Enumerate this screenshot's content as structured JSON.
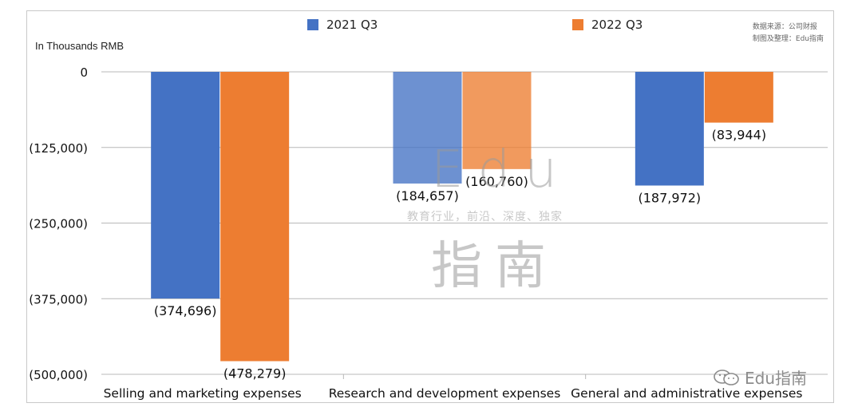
{
  "legend": [
    {
      "label": "2021 Q3",
      "color": "#4472c4"
    },
    {
      "label": "2022 Q3",
      "color": "#ed7d31"
    }
  ],
  "units_label": "In Thousands RMB",
  "source_lines": [
    "数据来源：公司财报",
    "制图及整理：Edu指南"
  ],
  "watermark": {
    "edu": "Edu",
    "tagline": "教育行业，前沿、深度、独家",
    "cn": "指南"
  },
  "brand_text": "Edu指南",
  "chart_data": {
    "type": "bar",
    "categories": [
      "Selling and marketing expenses",
      "Research and development expenses",
      "General and administrative expenses"
    ],
    "series": [
      {
        "name": "2021 Q3",
        "values": [
          -374696,
          -184657,
          -187972
        ],
        "labels": [
          "(374,696)",
          "(184,657)",
          "(187,972)"
        ],
        "color": "#4472c4"
      },
      {
        "name": "2022 Q3",
        "values": [
          -478279,
          -160760,
          -83944
        ],
        "labels": [
          "(478,279)",
          "(160,760)",
          "(83,944)"
        ],
        "color": "#ed7d31"
      }
    ],
    "ylim": [
      -500000,
      0
    ],
    "yticks": [
      0,
      -125000,
      -250000,
      -375000,
      -500000
    ],
    "ytick_labels": [
      "0",
      "(125,000)",
      "(250,000)",
      "(375,000)",
      "(500,000)"
    ],
    "grid": true,
    "legend_position": "top"
  }
}
